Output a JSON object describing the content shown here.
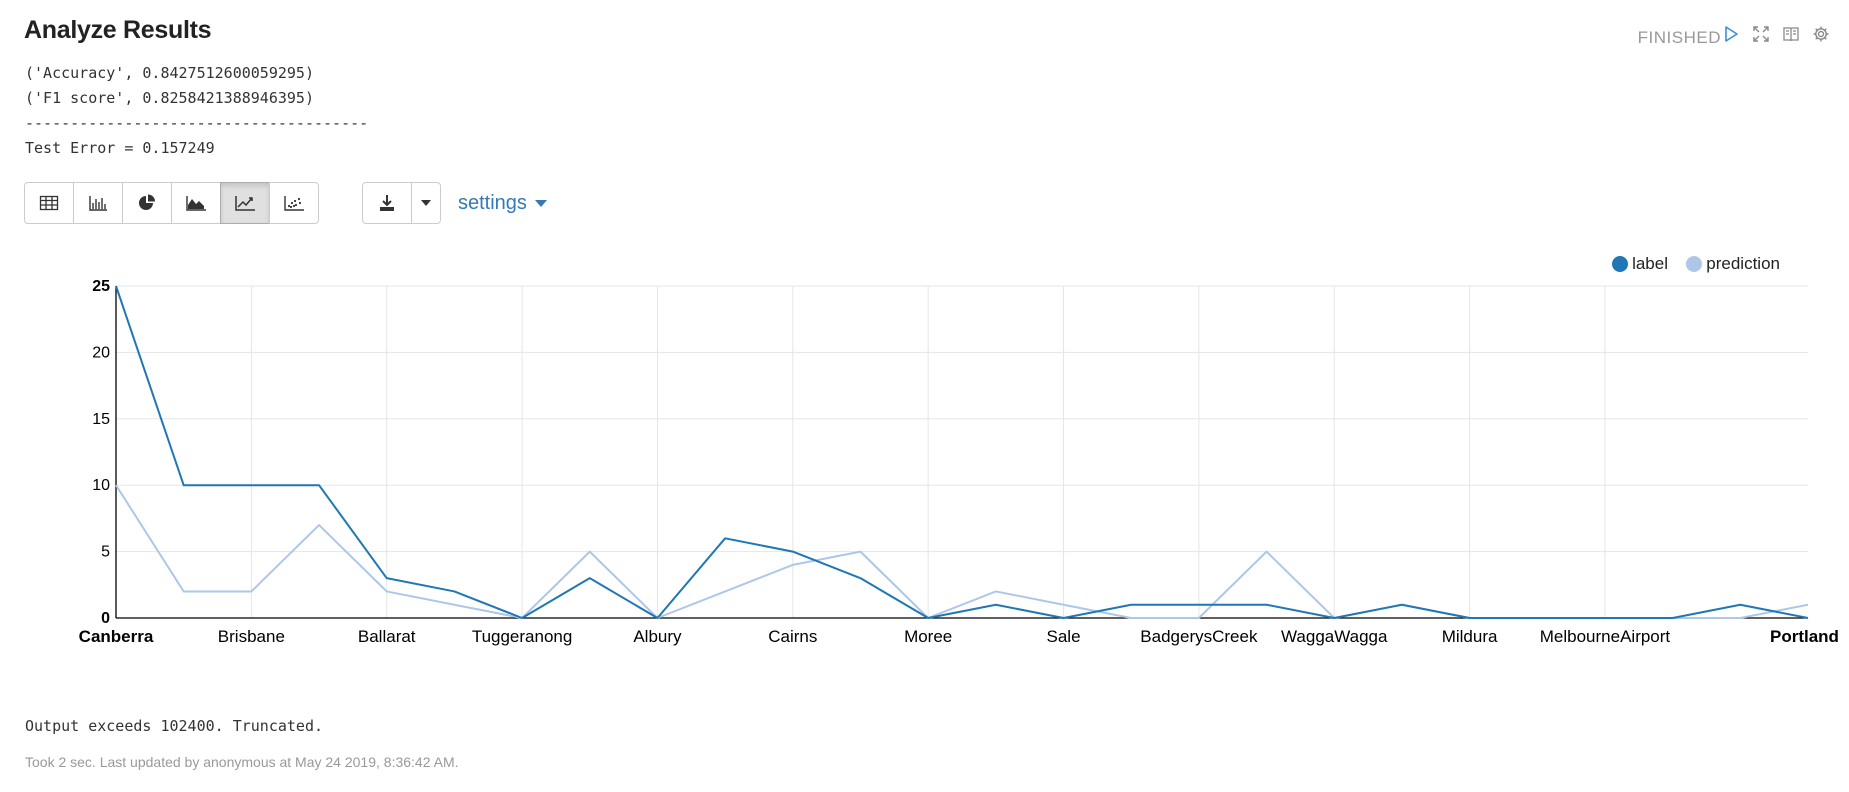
{
  "paragraph": {
    "title": "Analyze Results",
    "status": "FINISHED",
    "output_lines": [
      "('Accuracy', 0.8427512600059295)",
      "('F1 score', 0.8258421388946395)",
      "--------------------------------------",
      "Test Error = 0.157249"
    ],
    "settings_label": "settings",
    "truncated_note": "Output exceeds 102400. Truncated.",
    "footer": "Took 2 sec. Last updated by anonymous at May 24 2019, 8:36:42 AM."
  },
  "toolbar": {
    "icons": [
      "table-icon",
      "bar-chart-icon",
      "pie-chart-icon",
      "area-chart-icon",
      "line-chart-icon",
      "scatter-chart-icon"
    ],
    "active": "line-chart-icon"
  },
  "colors": {
    "label": "#1f77b4",
    "prediction": "#aec7e8",
    "accent": "#337ab7"
  },
  "chart_data": {
    "type": "line",
    "legend_placement": "top-right",
    "ylim": [
      0,
      25
    ],
    "yticks": [
      0,
      5,
      10,
      15,
      20,
      25
    ],
    "x_count": 26,
    "xtick_labels": [
      {
        "index": 0,
        "label": "Canberra",
        "bold": true
      },
      {
        "index": 2,
        "label": "Brisbane"
      },
      {
        "index": 4,
        "label": "Ballarat"
      },
      {
        "index": 6,
        "label": "Tuggeranong"
      },
      {
        "index": 8,
        "label": "Albury"
      },
      {
        "index": 10,
        "label": "Cairns"
      },
      {
        "index": 12,
        "label": "Moree"
      },
      {
        "index": 14,
        "label": "Sale"
      },
      {
        "index": 16,
        "label": "BadgerysCreek"
      },
      {
        "index": 18,
        "label": "WaggaWagga"
      },
      {
        "index": 20,
        "label": "Mildura"
      },
      {
        "index": 22,
        "label": "MelbourneAirport"
      },
      {
        "index": 25,
        "label": "Portland",
        "bold": true
      }
    ],
    "series": [
      {
        "name": "label",
        "values": [
          25,
          10,
          10,
          10,
          3,
          2,
          0,
          3,
          0,
          6,
          5,
          3,
          0,
          1,
          0,
          1,
          1,
          1,
          0,
          1,
          0,
          0,
          0,
          0,
          1,
          0
        ]
      },
      {
        "name": "prediction",
        "values": [
          10,
          2,
          2,
          7,
          2,
          1,
          0,
          5,
          0,
          2,
          4,
          5,
          0,
          2,
          1,
          0,
          0,
          5,
          0,
          1,
          0,
          0,
          0,
          0,
          0,
          1
        ]
      }
    ]
  }
}
